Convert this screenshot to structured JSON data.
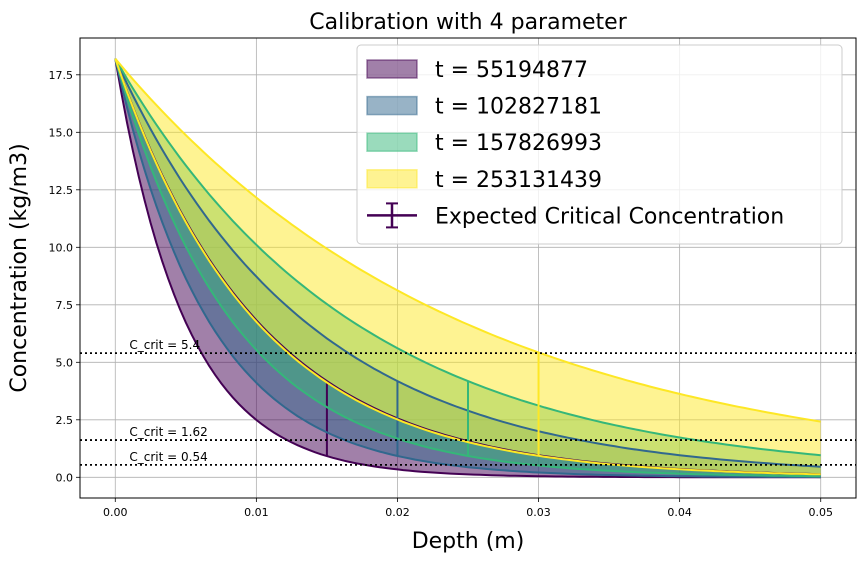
{
  "chart_data": {
    "type": "area",
    "title": "Calibration with 4 parameter",
    "xlabel": "Depth (m)",
    "ylabel": "Concentration (kg/m3)",
    "xlim": [
      -0.0025,
      0.0525
    ],
    "ylim": [
      -0.9,
      19.1
    ],
    "xticks": [
      0.0,
      0.01,
      0.02,
      0.03,
      0.04,
      0.05
    ],
    "xtick_labels": [
      "0.00",
      "0.01",
      "0.02",
      "0.03",
      "0.04",
      "0.05"
    ],
    "yticks": [
      0.0,
      2.5,
      5.0,
      7.5,
      10.0,
      12.5,
      15.0,
      17.5
    ],
    "ytick_labels": [
      "0.0",
      "2.5",
      "5.0",
      "7.5",
      "10.0",
      "12.5",
      "15.0",
      "17.5"
    ],
    "grid": true,
    "surface_concentration": 18.2,
    "depth_max": 0.05,
    "legend_position": "top-right",
    "series": [
      {
        "name": "t = 55194877",
        "color": "#440154",
        "lower_decay": 0.00503,
        "upper_decay": 0.0102,
        "cross_depth": 0.015
      },
      {
        "name": "t = 102827181",
        "color": "#31688e",
        "lower_decay": 0.00672,
        "upper_decay": 0.0136,
        "cross_depth": 0.02
      },
      {
        "name": "t = 157826993",
        "color": "#35b779",
        "lower_decay": 0.0084,
        "upper_decay": 0.017,
        "cross_depth": 0.025
      },
      {
        "name": "t = 253131439",
        "color": "#fde725",
        "lower_decay": 0.0101,
        "upper_decay": 0.0248,
        "cross_depth": 0.03
      }
    ],
    "reference_line": {
      "name": "Expected Critical Concentration",
      "color": "#440154"
    },
    "critical_levels": [
      {
        "label": "C_crit = 5.4",
        "value": 5.4
      },
      {
        "label": "C_crit = 1.62",
        "value": 1.62
      },
      {
        "label": "C_crit = 0.54",
        "value": 0.54
      }
    ]
  }
}
